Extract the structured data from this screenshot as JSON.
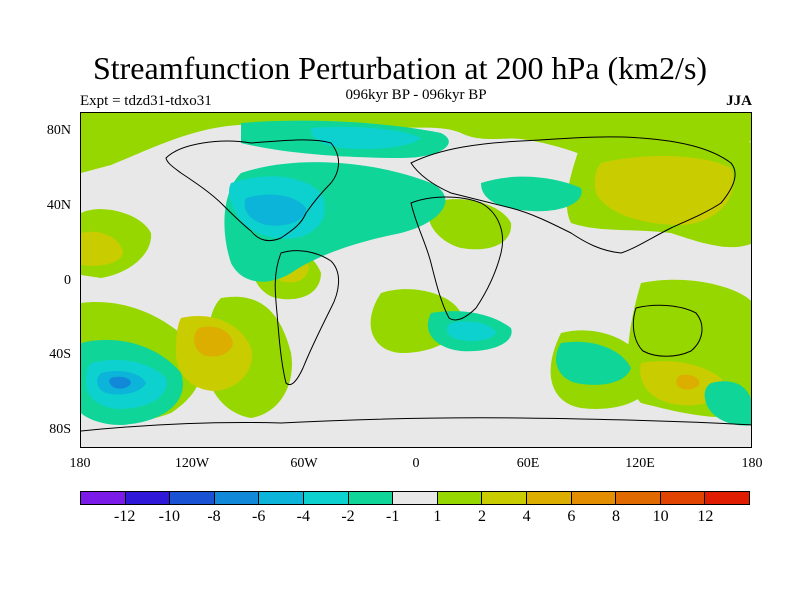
{
  "title": "Streamfunction Perturbation at 200 hPa (km2/s)",
  "subtitle": "096kyr BP - 096kyr BP",
  "left_label": "Expt = tdzd31-tdxo31",
  "right_label": "JJA",
  "lat_ticks": [
    "80N",
    "40N",
    "0",
    "40S",
    "80S"
  ],
  "lon_ticks": [
    "180",
    "120W",
    "60W",
    "0",
    "60E",
    "120E",
    "180"
  ],
  "colorbar": {
    "colors": [
      "#7b1be8",
      "#2f18d8",
      "#1953d3",
      "#1189d8",
      "#0bb4d8",
      "#0dd1cf",
      "#10d598",
      "#e8e8e8",
      "#96d700",
      "#c9cd00",
      "#dcae00",
      "#e28e00",
      "#e06a00",
      "#e04400",
      "#e01d00"
    ],
    "labels": [
      "-12",
      "-10",
      "-8",
      "-6",
      "-4",
      "-2",
      "-1",
      "1",
      "2",
      "4",
      "6",
      "8",
      "10",
      "12"
    ]
  },
  "map": {
    "background": "#e8e8e8",
    "layers": {
      "green": "#96d700",
      "yellow": "#c9cd00",
      "orange": "#dcae00",
      "teal": "#10d598",
      "cyan": "#0dd1cf",
      "lightblue": "#0bb4d8",
      "blue": "#1189d8",
      "coast": "#000000"
    }
  }
}
